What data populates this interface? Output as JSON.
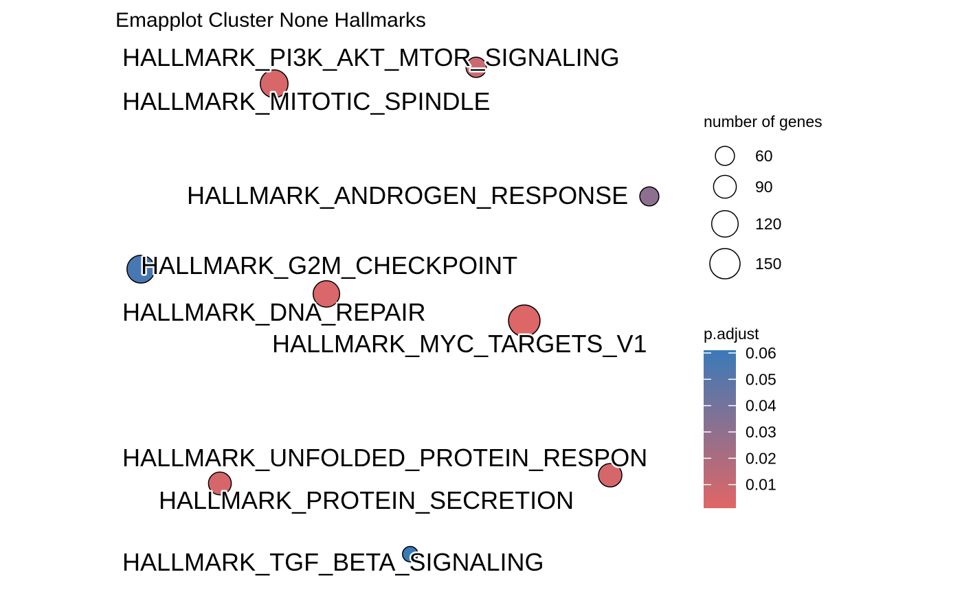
{
  "chart_data": {
    "type": "scatter",
    "title": "Emapplot Cluster None Hallmarks",
    "nodes": [
      {
        "label": "HALLMARK_PI3K_AKT_MTOR_SIGNALING",
        "size": 70,
        "padj": 0.008
      },
      {
        "label": "HALLMARK_MITOTIC_SPINDLE",
        "size": 130,
        "padj": 0.003
      },
      {
        "label": "HALLMARK_ANDROGEN_RESPONSE",
        "size": 60,
        "padj": 0.03
      },
      {
        "label": "HALLMARK_G2M_CHECKPOINT",
        "size": 130,
        "padj": 0.055
      },
      {
        "label": "HALLMARK_DNA_REPAIR",
        "size": 120,
        "padj": 0.002
      },
      {
        "label": "HALLMARK_MYC_TARGETS_V1",
        "size": 160,
        "padj": 0.001
      },
      {
        "label": "HALLMARK_UNFOLDED_PROTEIN_RESPON",
        "size": 95,
        "padj": 0.004
      },
      {
        "label": "HALLMARK_PROTEIN_SECRETION",
        "size": 90,
        "padj": 0.004
      },
      {
        "label": "HALLMARK_TGF_BETA_SIGNALING",
        "size": 30,
        "padj": 0.06
      }
    ],
    "legend_size": {
      "title": "number of genes",
      "values": [
        60,
        90,
        120,
        150
      ]
    },
    "legend_color": {
      "title": "p.adjust",
      "ticks": [
        0.06,
        0.05,
        0.04,
        0.03,
        0.02,
        0.01
      ],
      "tick_labels": [
        "0.06",
        "0.05",
        "0.04",
        "0.03",
        "0.02",
        "0.01"
      ],
      "range": [
        0.0,
        0.06
      ],
      "low_color": "#E06666",
      "high_color": "#3A7AB8"
    }
  }
}
